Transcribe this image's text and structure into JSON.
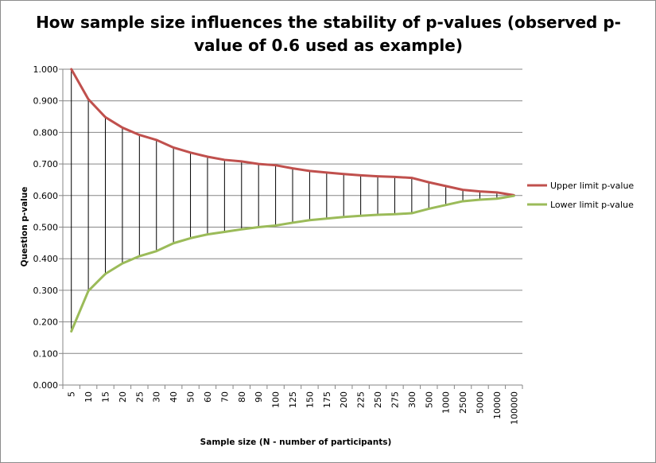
{
  "chart_data": {
    "type": "line",
    "title_lines": [
      "How sample size influences the stability of p-values (observed p-",
      "value of 0.6 used as example)"
    ],
    "xlabel": "Sample size (N - number of participants)",
    "ylabel": "Question p-value",
    "ylim": [
      0,
      1
    ],
    "y_ticks": [
      "0.000",
      "0.100",
      "0.200",
      "0.300",
      "0.400",
      "0.500",
      "0.600",
      "0.700",
      "0.800",
      "0.900",
      "1.000"
    ],
    "grid": true,
    "legend_position": "right",
    "categories": [
      "5",
      "10",
      "15",
      "20",
      "25",
      "30",
      "40",
      "50",
      "60",
      "70",
      "80",
      "90",
      "100",
      "125",
      "150",
      "175",
      "200",
      "225",
      "250",
      "275",
      "300",
      "500",
      "1000",
      "2500",
      "5000",
      "10000",
      "100000"
    ],
    "series": [
      {
        "name": "Upper limit p-value",
        "color": "#c0504d",
        "values": [
          1.0,
          0.905,
          0.848,
          0.815,
          0.792,
          0.776,
          0.752,
          0.736,
          0.723,
          0.713,
          0.708,
          0.7,
          0.696,
          0.686,
          0.678,
          0.673,
          0.668,
          0.664,
          0.661,
          0.659,
          0.656,
          0.642,
          0.63,
          0.618,
          0.613,
          0.61,
          0.601
        ]
      },
      {
        "name": "Lower limit p-value",
        "color": "#9bbb59",
        "values": [
          0.17,
          0.298,
          0.352,
          0.385,
          0.408,
          0.424,
          0.449,
          0.465,
          0.477,
          0.485,
          0.493,
          0.5,
          0.505,
          0.514,
          0.522,
          0.527,
          0.532,
          0.536,
          0.539,
          0.541,
          0.544,
          0.558,
          0.57,
          0.582,
          0.587,
          0.59,
          0.599
        ]
      }
    ],
    "range_line_color": "#000000",
    "gridline_color": "#868686"
  }
}
